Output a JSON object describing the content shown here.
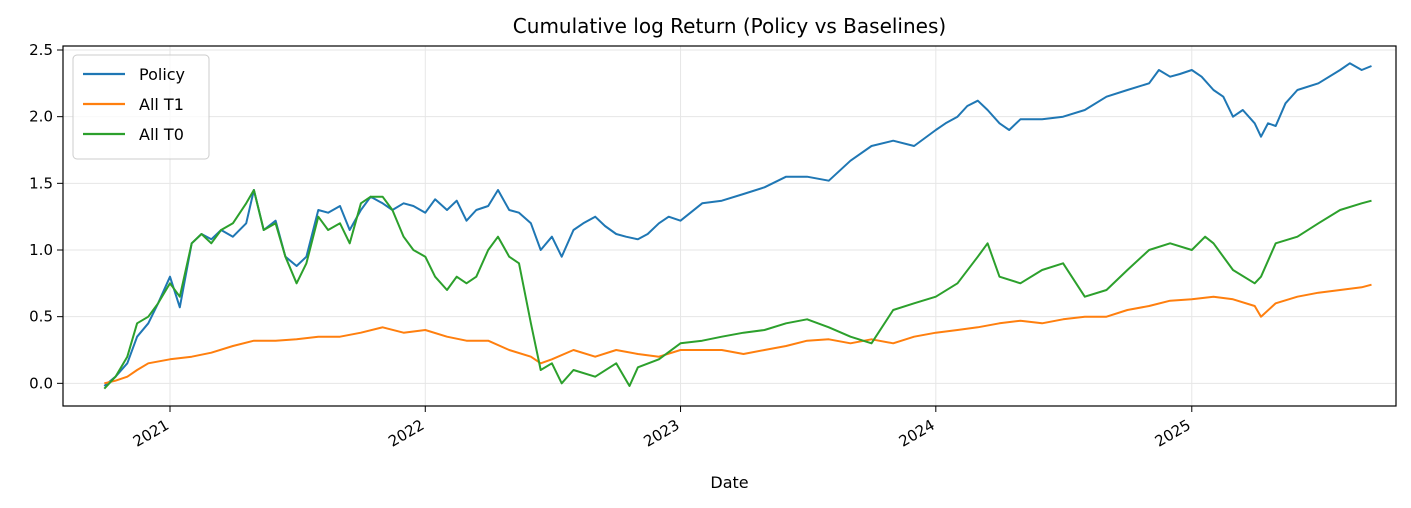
{
  "chart_data": {
    "type": "line",
    "title": "Cumulative log Return (Policy vs Baselines)",
    "xlabel": "Date",
    "ylabel": "",
    "xlim": [
      "2020-08-01",
      "2025-10-20"
    ],
    "ylim": [
      -0.17,
      2.53
    ],
    "x_ticks": [
      "2021",
      "2022",
      "2023",
      "2024",
      "2025"
    ],
    "y_ticks": [
      "0.0",
      "0.5",
      "1.0",
      "1.5",
      "2.0",
      "2.5"
    ],
    "grid": true,
    "legend_position": "top-left",
    "series": [
      {
        "name": "Policy",
        "color": "#1f77b4",
        "x": [
          "2020-09-29",
          "2020-10-15",
          "2020-11-01",
          "2020-11-15",
          "2020-12-01",
          "2020-12-15",
          "2021-01-01",
          "2021-01-15",
          "2021-02-01",
          "2021-02-15",
          "2021-03-01",
          "2021-03-15",
          "2021-04-01",
          "2021-04-20",
          "2021-05-01",
          "2021-05-15",
          "2021-06-01",
          "2021-06-15",
          "2021-07-01",
          "2021-07-15",
          "2021-08-01",
          "2021-08-15",
          "2021-09-01",
          "2021-09-15",
          "2021-10-01",
          "2021-10-15",
          "2021-11-01",
          "2021-11-15",
          "2021-12-01",
          "2021-12-15",
          "2022-01-01",
          "2022-01-15",
          "2022-02-01",
          "2022-02-15",
          "2022-03-01",
          "2022-03-15",
          "2022-04-01",
          "2022-04-15",
          "2022-05-01",
          "2022-05-15",
          "2022-06-01",
          "2022-06-15",
          "2022-07-01",
          "2022-07-15",
          "2022-08-01",
          "2022-08-15",
          "2022-09-01",
          "2022-09-15",
          "2022-10-01",
          "2022-10-15",
          "2022-11-01",
          "2022-11-15",
          "2022-12-01",
          "2022-12-15",
          "2023-01-01",
          "2023-02-01",
          "2023-03-01",
          "2023-04-01",
          "2023-05-01",
          "2023-06-01",
          "2023-07-01",
          "2023-08-01",
          "2023-09-01",
          "2023-10-01",
          "2023-11-01",
          "2023-12-01",
          "2024-01-01",
          "2024-01-15",
          "2024-02-01",
          "2024-02-15",
          "2024-03-01",
          "2024-03-15",
          "2024-04-01",
          "2024-04-15",
          "2024-05-01",
          "2024-05-15",
          "2024-06-01",
          "2024-07-01",
          "2024-08-01",
          "2024-09-01",
          "2024-10-01",
          "2024-11-01",
          "2024-11-15",
          "2024-12-01",
          "2024-12-15",
          "2025-01-01",
          "2025-01-15",
          "2025-02-01",
          "2025-02-15",
          "2025-03-01",
          "2025-03-15",
          "2025-04-01",
          "2025-04-10",
          "2025-04-20",
          "2025-05-01",
          "2025-05-15",
          "2025-06-01",
          "2025-07-01",
          "2025-08-01",
          "2025-08-15",
          "2025-09-01",
          "2025-09-15"
        ],
        "values": [
          -0.02,
          0.05,
          0.15,
          0.35,
          0.45,
          0.6,
          0.8,
          0.57,
          1.05,
          1.12,
          1.08,
          1.15,
          1.1,
          1.2,
          1.45,
          1.15,
          1.22,
          0.95,
          0.88,
          0.95,
          1.3,
          1.28,
          1.33,
          1.15,
          1.3,
          1.4,
          1.35,
          1.3,
          1.35,
          1.33,
          1.28,
          1.38,
          1.3,
          1.37,
          1.22,
          1.3,
          1.33,
          1.45,
          1.3,
          1.28,
          1.2,
          1.0,
          1.1,
          0.95,
          1.15,
          1.2,
          1.25,
          1.18,
          1.12,
          1.1,
          1.08,
          1.12,
          1.2,
          1.25,
          1.22,
          1.35,
          1.37,
          1.42,
          1.47,
          1.55,
          1.55,
          1.52,
          1.67,
          1.78,
          1.82,
          1.78,
          1.9,
          1.95,
          2.0,
          2.08,
          2.12,
          2.05,
          1.95,
          1.9,
          1.98,
          1.98,
          1.98,
          2.0,
          2.05,
          2.15,
          2.2,
          2.25,
          2.35,
          2.3,
          2.32,
          2.35,
          2.3,
          2.2,
          2.15,
          2.0,
          2.05,
          1.95,
          1.85,
          1.95,
          1.93,
          2.1,
          2.2,
          2.25,
          2.35,
          2.4,
          2.35,
          2.38
        ]
      },
      {
        "name": "All T1",
        "color": "#ff7f0e",
        "x": [
          "2020-09-29",
          "2020-10-15",
          "2020-11-01",
          "2020-11-15",
          "2020-12-01",
          "2021-01-01",
          "2021-02-01",
          "2021-03-01",
          "2021-04-01",
          "2021-05-01",
          "2021-06-01",
          "2021-07-01",
          "2021-08-01",
          "2021-09-01",
          "2021-10-01",
          "2021-11-01",
          "2021-12-01",
          "2022-01-01",
          "2022-02-01",
          "2022-03-01",
          "2022-04-01",
          "2022-05-01",
          "2022-06-01",
          "2022-06-15",
          "2022-07-01",
          "2022-08-01",
          "2022-09-01",
          "2022-10-01",
          "2022-11-01",
          "2022-12-01",
          "2023-01-01",
          "2023-02-01",
          "2023-03-01",
          "2023-04-01",
          "2023-05-01",
          "2023-06-01",
          "2023-07-01",
          "2023-08-01",
          "2023-09-01",
          "2023-10-01",
          "2023-11-01",
          "2023-12-01",
          "2024-01-01",
          "2024-02-01",
          "2024-03-01",
          "2024-04-01",
          "2024-05-01",
          "2024-06-01",
          "2024-07-01",
          "2024-08-01",
          "2024-09-01",
          "2024-10-01",
          "2024-11-01",
          "2024-12-01",
          "2025-01-01",
          "2025-02-01",
          "2025-03-01",
          "2025-04-01",
          "2025-04-10",
          "2025-05-01",
          "2025-06-01",
          "2025-07-01",
          "2025-08-01",
          "2025-09-01",
          "2025-09-15"
        ],
        "values": [
          0.0,
          0.02,
          0.05,
          0.1,
          0.15,
          0.18,
          0.2,
          0.23,
          0.28,
          0.32,
          0.32,
          0.33,
          0.35,
          0.35,
          0.38,
          0.42,
          0.38,
          0.4,
          0.35,
          0.32,
          0.32,
          0.25,
          0.2,
          0.15,
          0.18,
          0.25,
          0.2,
          0.25,
          0.22,
          0.2,
          0.25,
          0.25,
          0.25,
          0.22,
          0.25,
          0.28,
          0.32,
          0.33,
          0.3,
          0.33,
          0.3,
          0.35,
          0.38,
          0.4,
          0.42,
          0.45,
          0.47,
          0.45,
          0.48,
          0.5,
          0.5,
          0.55,
          0.58,
          0.62,
          0.63,
          0.65,
          0.63,
          0.58,
          0.5,
          0.6,
          0.65,
          0.68,
          0.7,
          0.72,
          0.74
        ]
      },
      {
        "name": "All T0",
        "color": "#2ca02c",
        "x": [
          "2020-09-29",
          "2020-10-15",
          "2020-11-01",
          "2020-11-15",
          "2020-12-01",
          "2020-12-15",
          "2021-01-01",
          "2021-01-15",
          "2021-02-01",
          "2021-02-15",
          "2021-03-01",
          "2021-03-15",
          "2021-04-01",
          "2021-04-20",
          "2021-05-01",
          "2021-05-15",
          "2021-06-01",
          "2021-06-15",
          "2021-07-01",
          "2021-07-15",
          "2021-08-01",
          "2021-08-15",
          "2021-09-01",
          "2021-09-15",
          "2021-10-01",
          "2021-10-15",
          "2021-11-01",
          "2021-11-15",
          "2021-12-01",
          "2021-12-15",
          "2022-01-01",
          "2022-01-15",
          "2022-02-01",
          "2022-02-15",
          "2022-03-01",
          "2022-03-15",
          "2022-04-01",
          "2022-04-15",
          "2022-05-01",
          "2022-05-15",
          "2022-06-01",
          "2022-06-15",
          "2022-07-01",
          "2022-07-15",
          "2022-08-01",
          "2022-09-01",
          "2022-10-01",
          "2022-10-20",
          "2022-11-01",
          "2022-12-01",
          "2023-01-01",
          "2023-02-01",
          "2023-03-01",
          "2023-04-01",
          "2023-05-01",
          "2023-06-01",
          "2023-07-01",
          "2023-08-01",
          "2023-09-01",
          "2023-10-01",
          "2023-11-01",
          "2023-12-01",
          "2024-01-01",
          "2024-02-01",
          "2024-03-01",
          "2024-03-15",
          "2024-04-01",
          "2024-05-01",
          "2024-06-01",
          "2024-07-01",
          "2024-08-01",
          "2024-09-01",
          "2024-10-01",
          "2024-11-01",
          "2024-12-01",
          "2025-01-01",
          "2025-01-20",
          "2025-02-01",
          "2025-03-01",
          "2025-04-01",
          "2025-04-10",
          "2025-05-01",
          "2025-06-01",
          "2025-07-01",
          "2025-08-01",
          "2025-09-01",
          "2025-09-15"
        ],
        "values": [
          -0.04,
          0.05,
          0.2,
          0.45,
          0.5,
          0.6,
          0.75,
          0.65,
          1.05,
          1.12,
          1.05,
          1.15,
          1.2,
          1.35,
          1.45,
          1.15,
          1.2,
          0.95,
          0.75,
          0.9,
          1.25,
          1.15,
          1.2,
          1.05,
          1.35,
          1.4,
          1.4,
          1.3,
          1.1,
          1.0,
          0.95,
          0.8,
          0.7,
          0.8,
          0.75,
          0.8,
          1.0,
          1.1,
          0.95,
          0.9,
          0.45,
          0.1,
          0.15,
          0.0,
          0.1,
          0.05,
          0.15,
          -0.02,
          0.12,
          0.18,
          0.3,
          0.32,
          0.35,
          0.38,
          0.4,
          0.45,
          0.48,
          0.42,
          0.35,
          0.3,
          0.55,
          0.6,
          0.65,
          0.75,
          0.95,
          1.05,
          0.8,
          0.75,
          0.85,
          0.9,
          0.65,
          0.7,
          0.85,
          1.0,
          1.05,
          1.0,
          1.1,
          1.05,
          0.85,
          0.75,
          0.8,
          1.05,
          1.1,
          1.2,
          1.3,
          1.35,
          1.37
        ]
      }
    ]
  }
}
